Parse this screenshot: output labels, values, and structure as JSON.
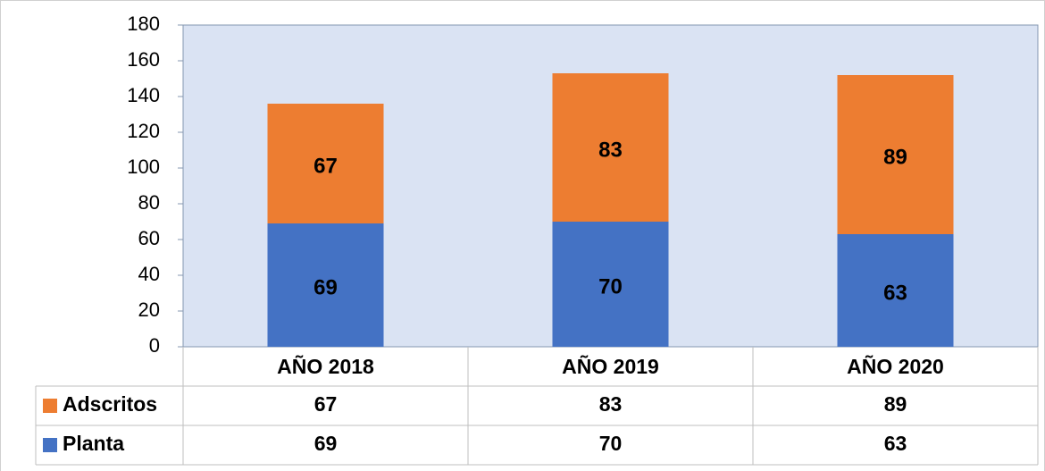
{
  "chart_data": {
    "type": "stacked_bar",
    "categories": [
      "AÑO 2018",
      "AÑO 2019",
      "AÑO 2020"
    ],
    "series": [
      {
        "name": "Planta",
        "color": "#4472c4",
        "values": [
          69,
          70,
          63
        ]
      },
      {
        "name": "Adscritos",
        "color": "#ed7d31",
        "values": [
          67,
          83,
          89
        ]
      }
    ],
    "ylim": [
      0,
      180
    ],
    "yticks": [
      0,
      20,
      40,
      60,
      80,
      100,
      120,
      140,
      160,
      180
    ],
    "grid": false,
    "plot_background": "#dae3f3",
    "data_table": true
  }
}
